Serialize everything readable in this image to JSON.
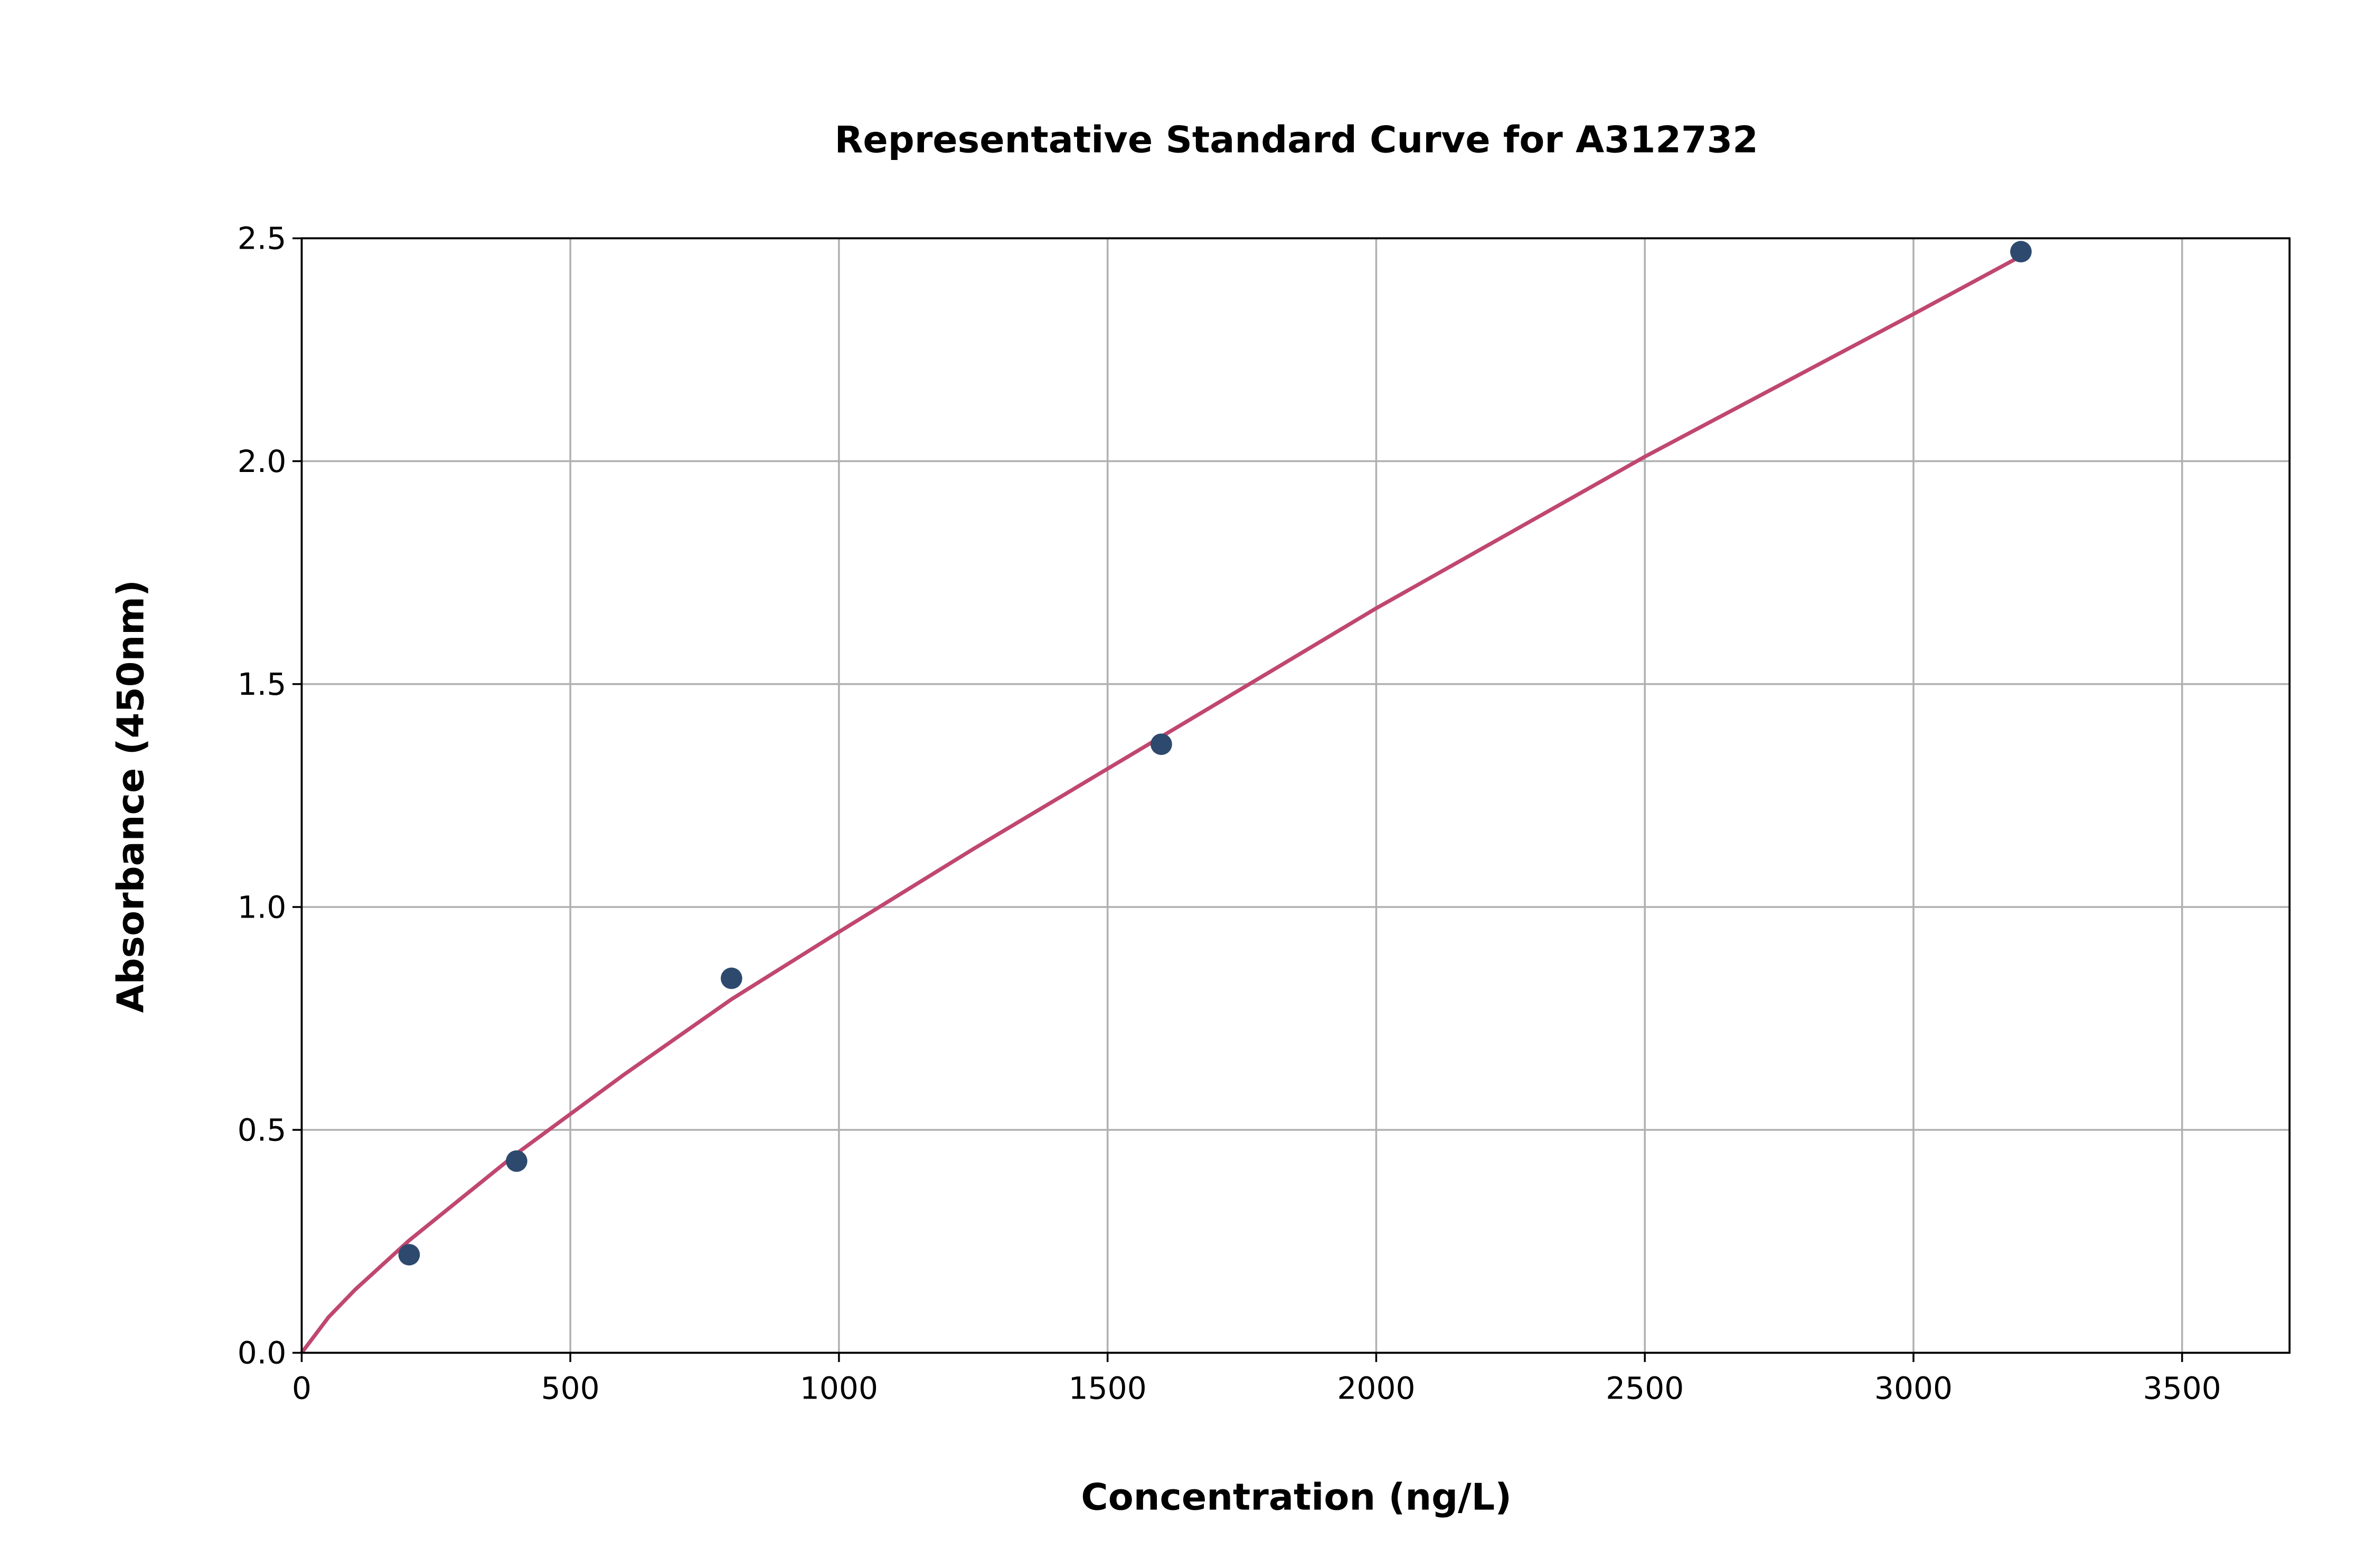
{
  "chart_data": {
    "type": "scatter",
    "title": "Representative Standard Curve for A312732",
    "xlabel": "Concentration (ng/L)",
    "ylabel": "Absorbance (450nm)",
    "xlim": [
      0,
      3700
    ],
    "ylim": [
      0,
      2.5
    ],
    "xticks": [
      0,
      500,
      1000,
      1500,
      2000,
      2500,
      3000,
      3500
    ],
    "xtick_labels": [
      "0",
      "500",
      "1000",
      "1500",
      "2000",
      "2500",
      "3000",
      "3500"
    ],
    "yticks": [
      0,
      0.5,
      1.0,
      1.5,
      2.0,
      2.5
    ],
    "ytick_labels": [
      "0.0",
      "0.5",
      "1.0",
      "1.5",
      "2.0",
      "2.5"
    ],
    "grid": true,
    "points": {
      "x": [
        200,
        400,
        800,
        1600,
        3200
      ],
      "y": [
        0.22,
        0.43,
        0.84,
        1.365,
        2.47
      ],
      "color": "#2d4a6e"
    },
    "fit_curve": {
      "x": [
        0,
        50,
        100,
        200,
        400,
        600,
        800,
        1000,
        1250,
        1500,
        1750,
        2000,
        2250,
        2500,
        2750,
        3000,
        3200
      ],
      "y": [
        0,
        0.08,
        0.142,
        0.252,
        0.447,
        0.624,
        0.793,
        0.944,
        1.13,
        1.31,
        1.49,
        1.67,
        1.84,
        2.01,
        2.17,
        2.33,
        2.46
      ],
      "color": "#c0476f"
    }
  }
}
